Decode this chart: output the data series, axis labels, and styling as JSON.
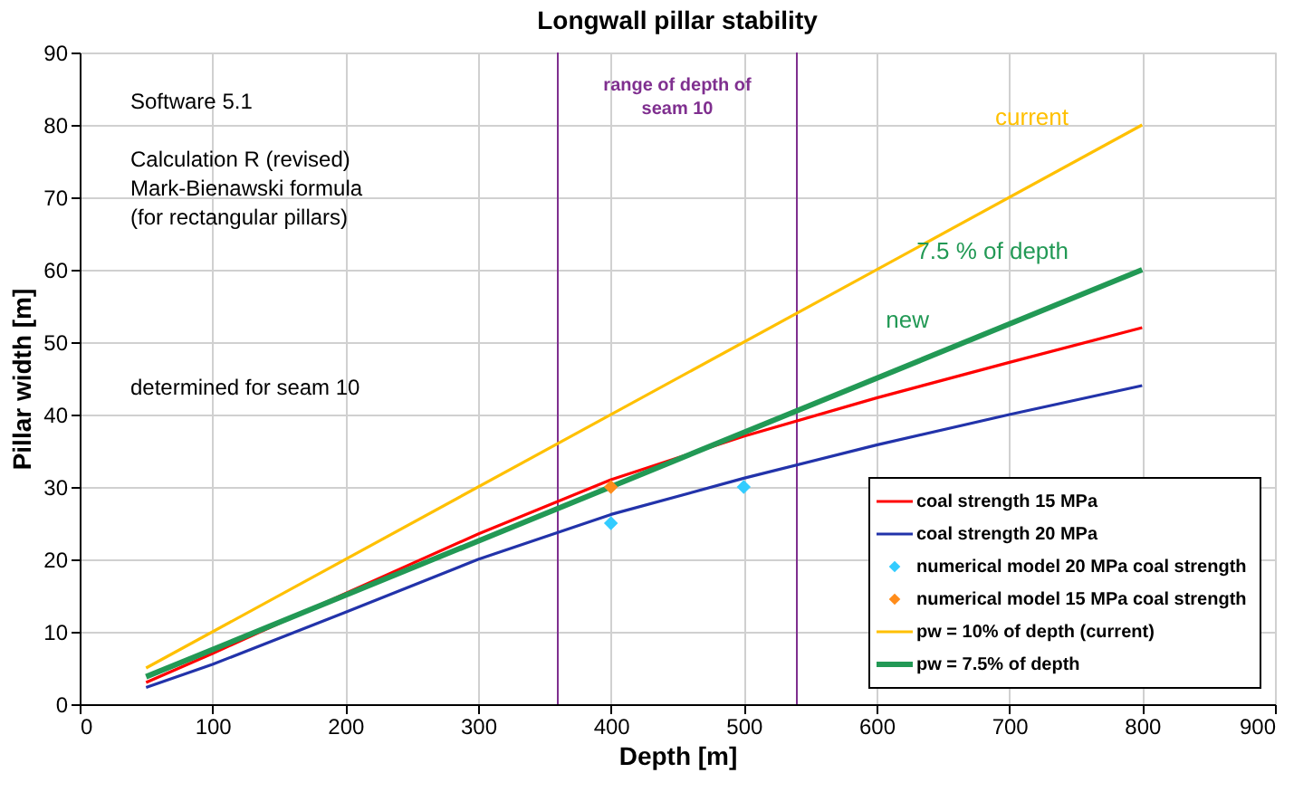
{
  "chart_data": {
    "type": "line",
    "title": "Longwall pillar stability",
    "xlabel": "Depth [m]",
    "ylabel": "Pillar width [m]",
    "xlim": [
      0,
      900
    ],
    "xticks": [
      0,
      100,
      200,
      300,
      400,
      500,
      600,
      700,
      800,
      900
    ],
    "ylim": [
      0,
      90
    ],
    "yticks": [
      0,
      10,
      20,
      30,
      40,
      50,
      60,
      70,
      80,
      90
    ],
    "grid": true,
    "legend": "bottom right",
    "marker": "none",
    "series": [
      {
        "name": "coal strength 15 MPa",
        "color": "#ff0000",
        "x": [
          50,
          100,
          200,
          300,
          400,
          500,
          600,
          700,
          800
        ],
        "values": [
          3,
          7,
          15.3,
          23.5,
          31,
          37,
          42.3,
          47.2,
          52
        ]
      },
      {
        "name": "coal strength 20 MPa",
        "color": "#2233aa",
        "x": [
          50,
          100,
          200,
          300,
          400,
          500,
          600,
          700,
          800
        ],
        "values": [
          2.3,
          5.5,
          12.7,
          20,
          26.2,
          31.2,
          35.8,
          40,
          44
        ]
      },
      {
        "name": "numerical model 20 MPa coal strength",
        "type": "scatter",
        "marker": "diamond",
        "color": "#33ccff",
        "x": [
          400,
          500
        ],
        "values": [
          25,
          30
        ]
      },
      {
        "name": "numerical model 15 MPa coal strength",
        "type": "scatter",
        "marker": "diamond",
        "color": "#ff8c1a",
        "x": [
          400
        ],
        "values": [
          30
        ]
      },
      {
        "name": "pw = 10% of depth (current)",
        "color": "#ffc000",
        "x": [
          50,
          800
        ],
        "values": [
          5,
          80
        ]
      },
      {
        "name": "pw = 7.5% of depth",
        "color": "#229955",
        "x": [
          50,
          800
        ],
        "values": [
          3.8,
          60
        ]
      }
    ],
    "ref_lines": [
      {
        "axis": "x",
        "value": 360,
        "color": "#7f2f8f"
      },
      {
        "axis": "x",
        "value": 540,
        "color": "#7f2f8f"
      }
    ],
    "annotations": [
      "Software 5.1",
      "Calculation R (revised)",
      "Mark-Bienawski formula",
      "(for rectangular pillars)",
      "determined for seam 10",
      "range of depth of seam 10",
      "current",
      "7.5 % of depth",
      "new"
    ]
  }
}
